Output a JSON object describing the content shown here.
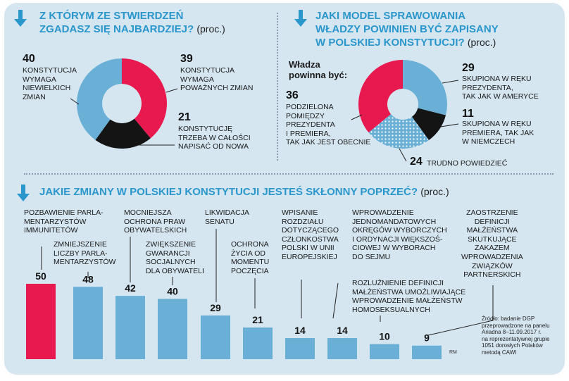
{
  "colors": {
    "pink": "#e8194f",
    "blue": "#6ab0d6",
    "black": "#141414",
    "accent": "#2a97cc",
    "panel": "#d5e6f1"
  },
  "section1": {
    "title_line1": "Z KTÓRYM ZE STWIERDZEŃ",
    "title_line2": "ZGADASZ SIĘ NAJBARDZIEJ?",
    "unit": "(proc.)"
  },
  "section2": {
    "title_line1": "JAKI MODEL SPRAWOWANIA",
    "title_line2": "WŁADZY POWINIEN BYĆ ZAPISANY",
    "title_line3": "W POLSKIEJ KONSTYTUCJI?",
    "unit": "(proc.)",
    "subtitle_line1": "Władza",
    "subtitle_line2": "powinna być:"
  },
  "section3": {
    "title": "JAKIE ZMIANY W POLSKIEJ KONSTYTUCJI JESTEŚ SKŁONNY POPRZEĆ?",
    "unit": "(proc.)"
  },
  "source": {
    "line1": "Źródło: badanie DGP",
    "line2": "przeprowadzone na panelu",
    "line3": "Ariadna 8–11.09.2017 r.",
    "line4": "na reprezentatywnej grupie",
    "line5": "1051 dorosłych Polaków",
    "line6": "metodą CAWI"
  },
  "credit": "RM",
  "chart_data": [
    {
      "type": "pie",
      "title": "Z którym ze stwierdzeń zgadasz się najbardziej? (proc.)",
      "slices": [
        {
          "value": 39,
          "label_lines": [
            "KONSTYTUCJA",
            "WYMAGA",
            "POWAŻNYCH ZMIAN"
          ],
          "color": "#e8194f"
        },
        {
          "value": 21,
          "label_lines": [
            "KONSTYTUCJĘ",
            "TRZEBA W CAŁOŚCI",
            "NAPISAĆ OD NOWA"
          ],
          "color": "#141414"
        },
        {
          "value": 40,
          "label_lines": [
            "KONSTYTUCJA",
            "WYMAGA",
            "NIEWIELKICH",
            "ZMIAN"
          ],
          "color": "#6ab0d6"
        }
      ]
    },
    {
      "type": "pie",
      "title": "Jaki model sprawowania władzy powinien być zapisany w polskiej konstytucji? (proc.)",
      "slices": [
        {
          "value": 29,
          "label_lines": [
            "SKUPIONA W RĘKU",
            "PREZYDENTA,",
            "TAK JAK W AMERYCE"
          ],
          "color": "#6ab0d6"
        },
        {
          "value": 11,
          "label_lines": [
            "SKUPIONA W RĘKU",
            "PREMIERA, TAK JAK",
            "W NIEMCZECH"
          ],
          "color": "#141414"
        },
        {
          "value": 24,
          "label_lines": [
            "TRUDNO POWIEDZIEĆ"
          ],
          "color": "#6ab0d6",
          "pattern": "dots"
        },
        {
          "value": 36,
          "label_lines": [
            "PODZIELONA",
            "POMIĘDZY",
            "PREZYDENTA",
            "I PREMIERA,",
            "TAK JAK JEST OBECNIE"
          ],
          "color": "#e8194f"
        }
      ]
    },
    {
      "type": "bar",
      "title": "Jakie zmiany w polskiej konstytucji jesteś skłonny poprzeć? (proc.)",
      "ylim": [
        0,
        50
      ],
      "bars": [
        {
          "value": 50,
          "label_lines": [
            "POZBAWIENIE PARLA-",
            "MENTARZYSTÓW",
            "IMMUNITETÓW"
          ],
          "highlight": true
        },
        {
          "value": 48,
          "label_lines": [
            "ZMNIEJSZENIE",
            "LICZBY PARLA-",
            "MENTARZYSTÓW"
          ]
        },
        {
          "value": 42,
          "label_lines": [
            "MOCNIEJSZA",
            "OCHRONA PRAW",
            "OBYWATELSKICH"
          ]
        },
        {
          "value": 40,
          "label_lines": [
            "ZWIĘKSZENIE",
            "GWARANCJI",
            "SOCJALNYCH",
            "DLA OBYWATELI"
          ]
        },
        {
          "value": 29,
          "label_lines": [
            "LIKWIDACJA",
            "SENATU"
          ]
        },
        {
          "value": 21,
          "label_lines": [
            "OCHRONA",
            "ŻYCIA OD",
            "MOMENTU",
            "POCZĘCIA"
          ]
        },
        {
          "value": 14,
          "label_lines": [
            "WPISANIE",
            "ROZDZIAŁU",
            "DOTYCZĄCEGO",
            "CZŁONKOSTWA",
            "POLSKI W UNII",
            "EUROPEJSKIEJ"
          ]
        },
        {
          "value": 14,
          "label_lines": [
            "WPROWADZENIE",
            "JEDNOMANDATOWYCH",
            "OKRĘGÓW WYBORCZYCH",
            "I ORDYNACJI WIĘKSZOŚ-",
            "CIOWEJ W WYBORACH",
            "DO SEJMU"
          ]
        },
        {
          "value": 10,
          "label_lines": [
            "ROZLUŹNIENIE DEFINICJI",
            "MAŁŻEŃSTWA UMOŻLIWIAJĄCE",
            "WPROWADZENIE MAŁŻEŃSTW",
            "HOMOSEKSUALNYCH"
          ]
        },
        {
          "value": 9,
          "label_lines": [
            "ZAOSTRZENIE",
            "DEFINICJI",
            "MAŁŻEŃSTWA",
            "SKUTKUJĄCE",
            "ZAKAZEM",
            "WPROWADZENIA",
            "ZWIĄZKÓW",
            "PARTNERSKICH"
          ]
        }
      ]
    }
  ]
}
